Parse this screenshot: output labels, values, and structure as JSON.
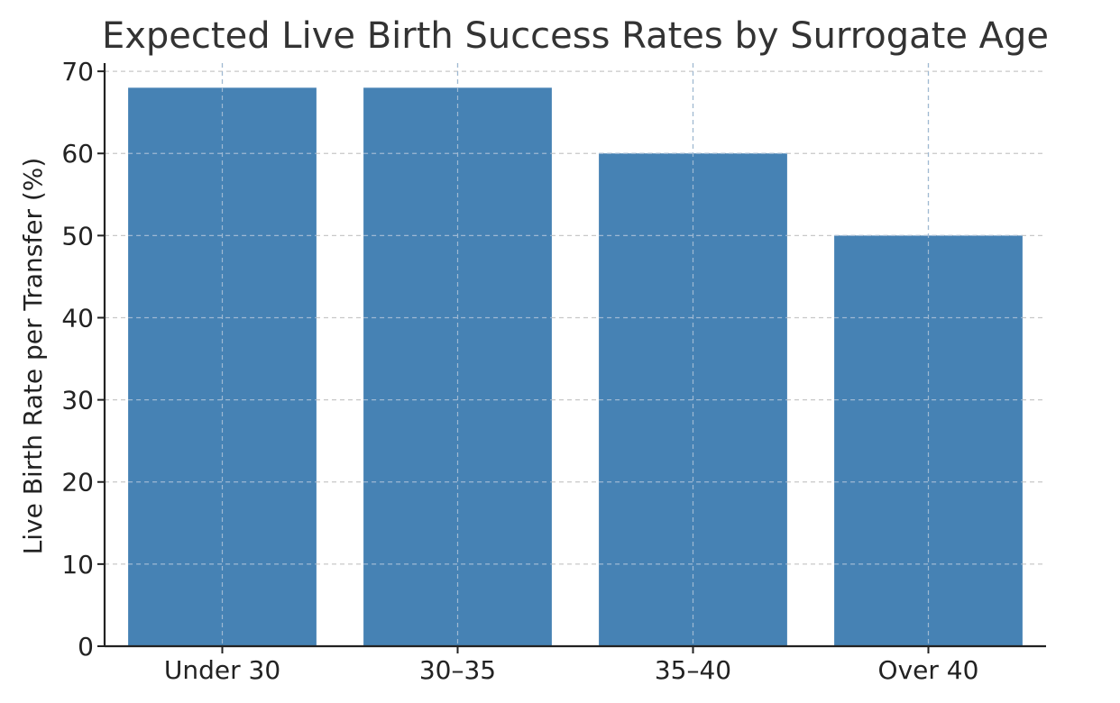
{
  "chart_data": {
    "type": "bar",
    "title": "Expected Live Birth Success Rates by Surrogate Age",
    "xlabel": "",
    "ylabel": "Live Birth Rate per Transfer (%)",
    "categories": [
      "Under 30",
      "30–35",
      "35–40",
      "Over 40"
    ],
    "values": [
      68,
      68,
      60,
      50
    ],
    "ylim": [
      0,
      71
    ],
    "yticks": [
      0,
      10,
      20,
      30,
      40,
      50,
      60,
      70
    ],
    "grid": true,
    "bar_color": "#4682b4"
  }
}
